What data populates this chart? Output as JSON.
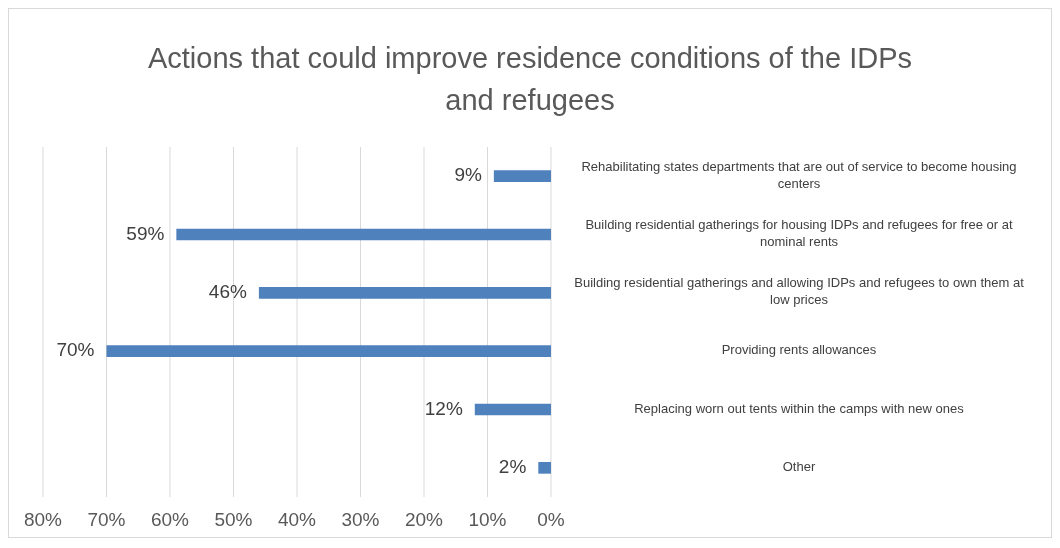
{
  "chart_data": {
    "type": "bar",
    "orientation": "horizontal",
    "title": "Actions that could improve residence conditions of the IDPs and refugees",
    "categories": [
      "Rehabilitating states departments that are out of service to become housing centers",
      "Building residential gatherings for housing IDPs and refugees for free or at nominal rents",
      "Building residential gatherings and allowing IDPs and refugees to own them at low prices",
      "Providing rents allowances",
      "Replacing worn out tents within the camps with new ones",
      "Other"
    ],
    "values": [
      9,
      59,
      46,
      70,
      12,
      2
    ],
    "color": "#4f81bd",
    "value_labels": [
      "9%",
      "59%",
      "46%",
      "70%",
      "12%",
      "2%"
    ],
    "xlim": [
      80,
      0
    ],
    "xticks": [
      {
        "value": 80,
        "label": "80%"
      },
      {
        "value": 70,
        "label": "70%"
      },
      {
        "value": 60,
        "label": "60%"
      },
      {
        "value": 50,
        "label": "50%"
      },
      {
        "value": 40,
        "label": "40%"
      },
      {
        "value": 30,
        "label": "30%"
      },
      {
        "value": 20,
        "label": "20%"
      },
      {
        "value": 10,
        "label": "10%"
      },
      {
        "value": 0,
        "label": "0%"
      }
    ],
    "grid": "x"
  }
}
